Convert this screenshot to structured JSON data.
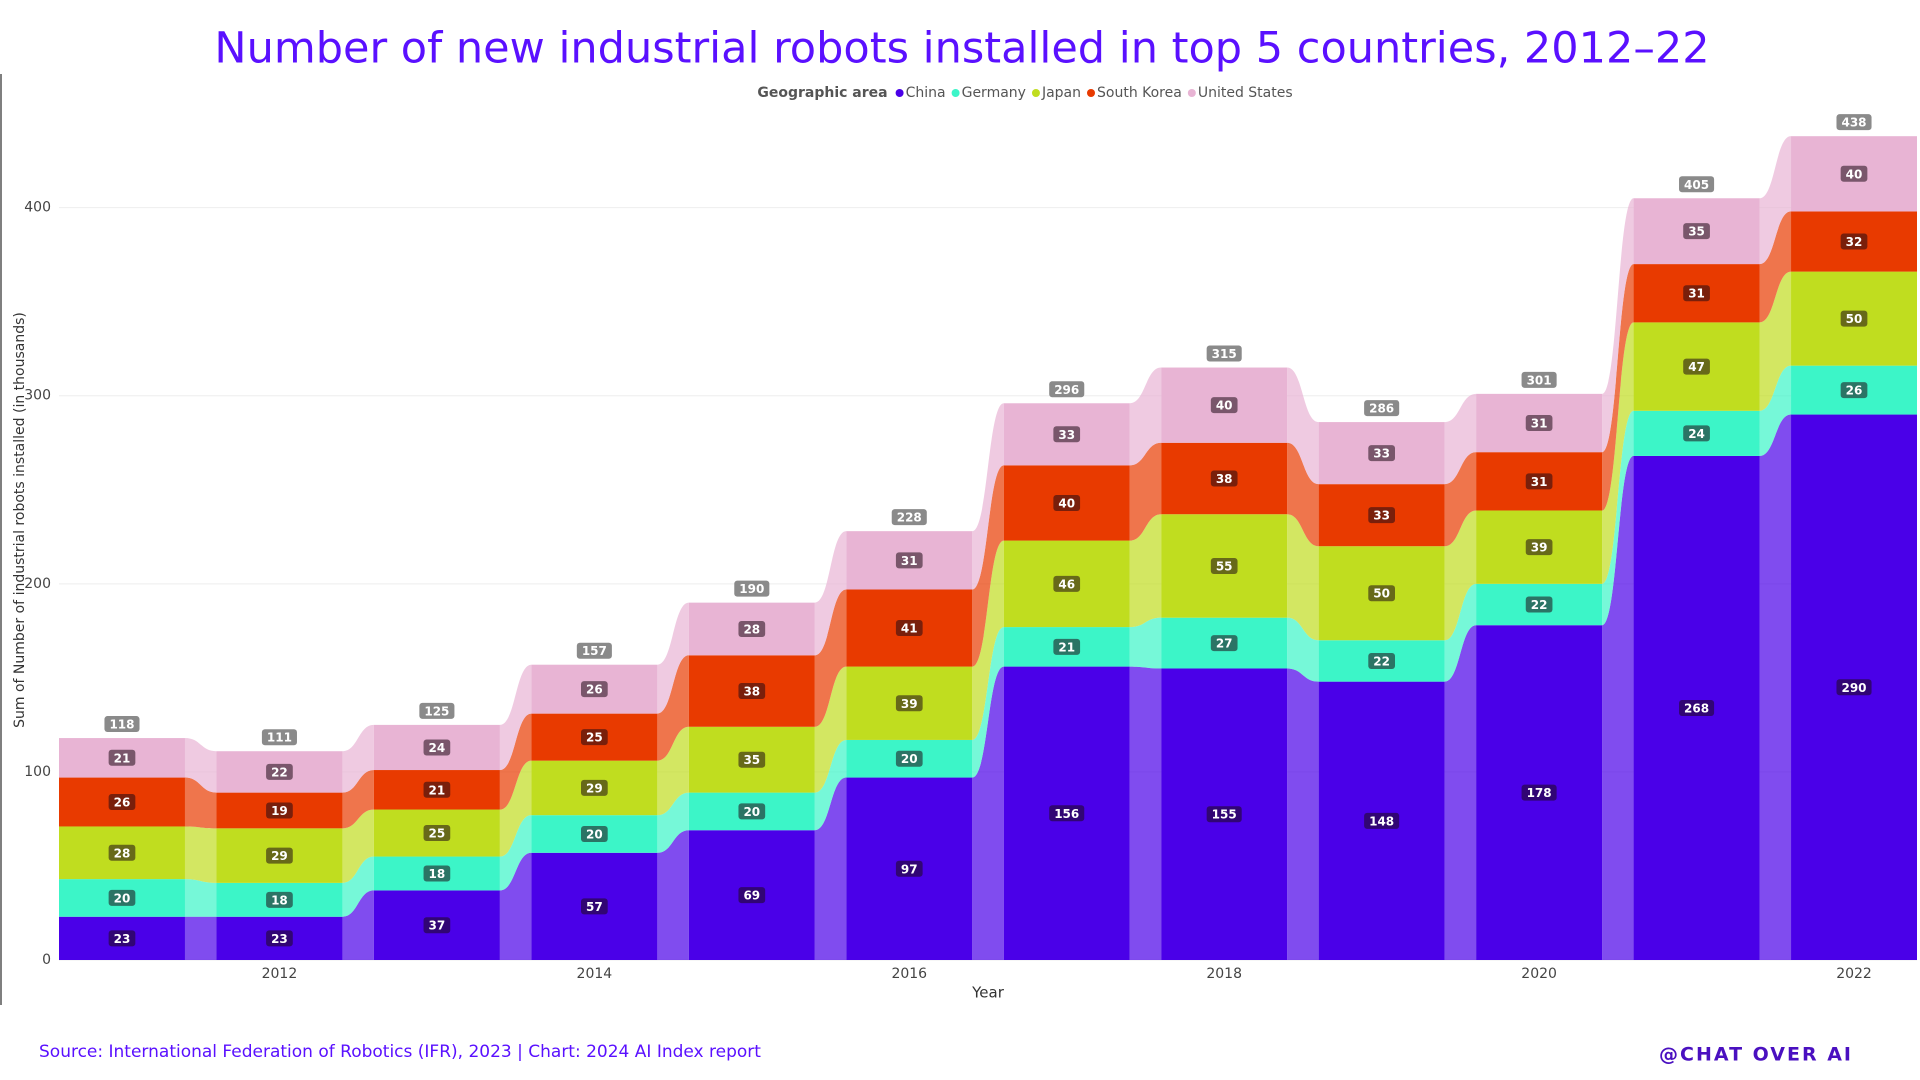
{
  "chart_data": {
    "type": "stacked-bar-ribbon",
    "title": "Number of new industrial robots installed in top 5 countries, 2012–22",
    "legend_title": "Geographic area",
    "x_label": "Year",
    "y_label": "Sum of Number of industrial robots installed (in thousands)",
    "x": [
      2011,
      2012,
      2013,
      2014,
      2015,
      2016,
      2017,
      2018,
      2019,
      2020,
      2021,
      2022
    ],
    "xlim": [
      2010.6,
      2022.4
    ],
    "xticks": [
      2012,
      2014,
      2016,
      2018,
      2020,
      2022
    ],
    "ylim": [
      0,
      470
    ],
    "yticks": [
      0,
      100,
      200,
      300,
      400
    ],
    "grid": true,
    "series": [
      {
        "name": "China",
        "color": "#4a00e8",
        "values": [
          23,
          23,
          37,
          57,
          69,
          97,
          156,
          155,
          148,
          178,
          268,
          290
        ]
      },
      {
        "name": "Germany",
        "color": "#3cf5c8",
        "values": [
          20,
          18,
          18,
          20,
          20,
          20,
          21,
          27,
          22,
          22,
          24,
          26
        ]
      },
      {
        "name": "Japan",
        "color": "#c0dd1f",
        "values": [
          28,
          29,
          25,
          29,
          35,
          39,
          46,
          55,
          50,
          39,
          47,
          50
        ]
      },
      {
        "name": "South Korea",
        "color": "#e83a00",
        "values": [
          26,
          19,
          21,
          25,
          38,
          41,
          40,
          38,
          33,
          31,
          31,
          32
        ]
      },
      {
        "name": "United States",
        "color": "#e8b4d4",
        "values": [
          21,
          22,
          24,
          26,
          28,
          31,
          33,
          40,
          33,
          31,
          35,
          40
        ]
      }
    ],
    "totals": [
      118,
      111,
      125,
      157,
      190,
      228,
      296,
      315,
      286,
      301,
      405,
      438
    ],
    "source": "Source: International Federation of Robotics (IFR), 2023 | Chart: 2024 AI Index report",
    "watermark": "@CHAT OVER AI"
  }
}
